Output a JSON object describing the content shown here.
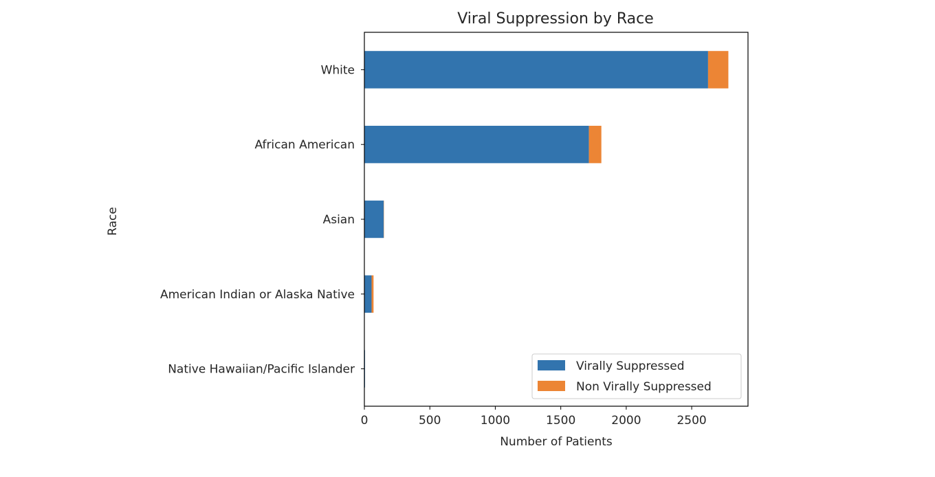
{
  "chart_data": {
    "type": "bar",
    "orientation": "horizontal",
    "stacked": true,
    "title": "Viral Suppression by Race",
    "xlabel": "Number of Patients",
    "ylabel": "Race",
    "xlim": [
      0,
      2930
    ],
    "xticks": [
      0,
      500,
      1000,
      1500,
      2000,
      2500
    ],
    "xtick_labels": [
      "0",
      "500",
      "1000",
      "1500",
      "2000",
      "2500"
    ],
    "categories": [
      "White",
      "African American",
      "Asian",
      "American Indian or Alaska Native",
      "Native Hawaiian/Pacific Islander"
    ],
    "series": [
      {
        "name": "Virally Suppressed",
        "color": "#3274ae",
        "values": [
          2625,
          1715,
          148,
          55,
          5
        ]
      },
      {
        "name": "Non Virally Suppressed",
        "color": "#ec8535",
        "values": [
          155,
          95,
          2,
          15,
          0
        ]
      }
    ],
    "legend_position": "lower right",
    "grid": false
  }
}
